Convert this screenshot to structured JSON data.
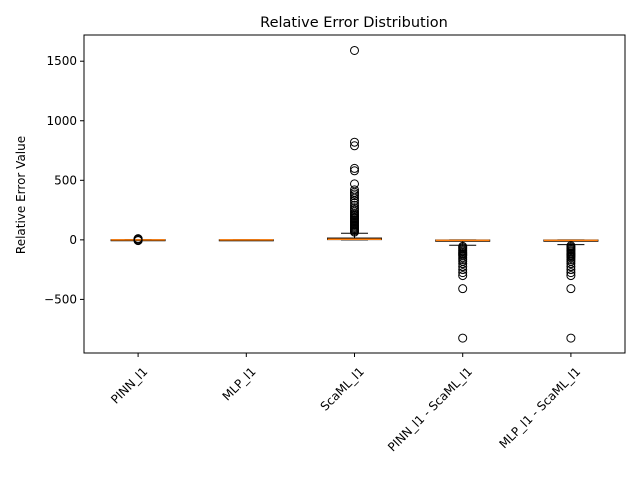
{
  "chart_data": {
    "type": "box",
    "title": "Relative Error Distribution",
    "xlabel": "",
    "ylabel": "Relative Error Value",
    "ylim": [
      -950,
      1720
    ],
    "yticks": [
      -500,
      0,
      500,
      1000,
      1500
    ],
    "ytick_labels": [
      "−500",
      "0",
      "500",
      "1000",
      "1500"
    ],
    "grid": false,
    "categories": [
      "PINN_l1",
      "MLP_l1",
      "ScaML_l1",
      "PINN_l1 - ScaML_l1",
      "MLP_l1 - ScaML_l1"
    ],
    "boxes": [
      {
        "name": "PINN_l1",
        "whislo": -3,
        "q1": -1,
        "med": 0,
        "q3": 1,
        "whishi": 3,
        "fliers": [
          -6,
          -4,
          4,
          6,
          8,
          10
        ]
      },
      {
        "name": "MLP_l1",
        "whislo": -1,
        "q1": -0.5,
        "med": 0,
        "q3": 0.5,
        "whishi": 1,
        "fliers": []
      },
      {
        "name": "ScaML_l1",
        "whislo": 0,
        "q1": 2,
        "med": 5,
        "q3": 15,
        "whishi": 55,
        "fliers": [
          65,
          75,
          85,
          95,
          105,
          115,
          125,
          135,
          145,
          155,
          165,
          175,
          185,
          195,
          205,
          215,
          225,
          240,
          255,
          270,
          290,
          310,
          330,
          350,
          370,
          385,
          400,
          420,
          470,
          580,
          600,
          790,
          820,
          1590
        ]
      },
      {
        "name": "PINN_l1 - ScaML_l1",
        "whislo": -45,
        "q1": -12,
        "med": -4,
        "q3": -1,
        "whishi": 0,
        "fliers": [
          -55,
          -65,
          -75,
          -85,
          -95,
          -105,
          -115,
          -125,
          -135,
          -150,
          -165,
          -180,
          -200,
          -225,
          -250,
          -275,
          -300,
          -410,
          -825
        ]
      },
      {
        "name": "MLP_l1 - ScaML_l1",
        "whislo": -40,
        "q1": -12,
        "med": -4,
        "q3": -1,
        "whishi": 0,
        "fliers": [
          -50,
          -60,
          -70,
          -80,
          -90,
          -100,
          -110,
          -120,
          -130,
          -140,
          -150,
          -165,
          -180,
          -200,
          -225,
          -250,
          -275,
          -300,
          -410,
          -825
        ]
      }
    ],
    "colors": {
      "box": "#000000",
      "median": "#ff7f0e",
      "flier_edge": "#000000",
      "background": "#ffffff"
    }
  }
}
